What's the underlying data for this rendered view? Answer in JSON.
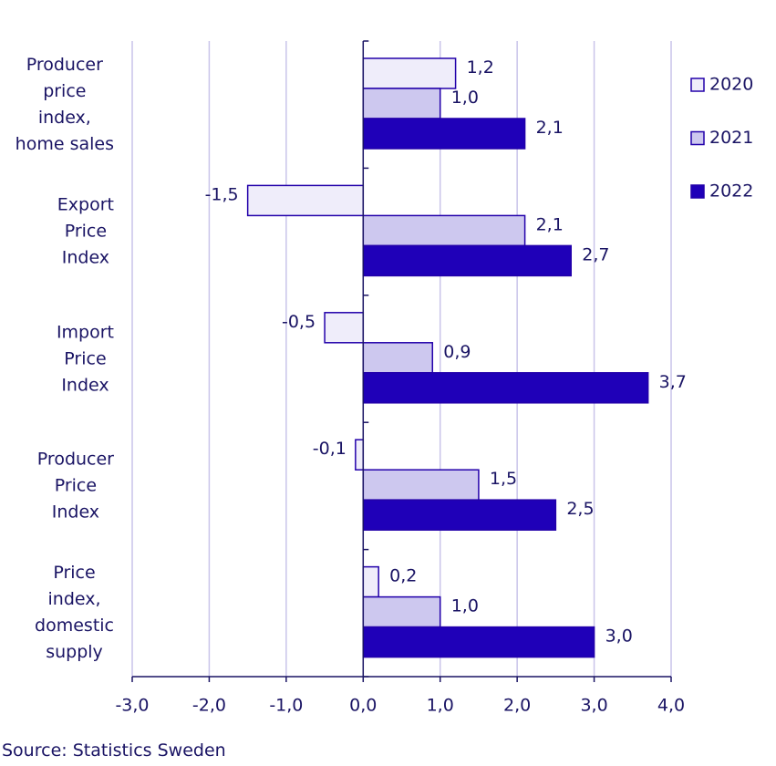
{
  "chart_data": {
    "type": "bar",
    "orientation": "horizontal",
    "categories": [
      "Producer\nprice\nindex,\nhome sales",
      "Export\nPrice\nIndex",
      "Import\nPrice\nIndex",
      "Producer\nPrice\nIndex",
      "Price\nindex,\ndomestic\nsupply"
    ],
    "series": [
      {
        "name": "2020",
        "color": "#efedfa",
        "values": [
          1.2,
          -1.5,
          -0.5,
          -0.1,
          0.2
        ],
        "value_labels": [
          "1,2",
          "-1,5",
          "-0,5",
          "-0,1",
          "0,2"
        ]
      },
      {
        "name": "2021",
        "color": "#cdc8ef",
        "values": [
          1.0,
          2.1,
          0.9,
          1.5,
          1.0
        ],
        "value_labels": [
          "1,0",
          "2,1",
          "0,9",
          "1,5",
          "1,0"
        ]
      },
      {
        "name": "2022",
        "color": "#1f00b8",
        "values": [
          2.1,
          2.7,
          3.7,
          2.5,
          3.0
        ],
        "value_labels": [
          "2,1",
          "2,7",
          "3,7",
          "2,5",
          "3,0"
        ]
      }
    ],
    "xlim": [
      -3,
      4
    ],
    "xticks": [
      {
        "value": -3,
        "label": "-3,0"
      },
      {
        "value": -2,
        "label": "-2,0"
      },
      {
        "value": -1,
        "label": "-1,0"
      },
      {
        "value": 0,
        "label": "0,0"
      },
      {
        "value": 1,
        "label": "1,0"
      },
      {
        "value": 2,
        "label": "2,0"
      },
      {
        "value": 3,
        "label": "3,0"
      },
      {
        "value": 4,
        "label": "4,0"
      }
    ],
    "grid": true,
    "legend": "right",
    "source": "Source: Statistics Sweden"
  }
}
